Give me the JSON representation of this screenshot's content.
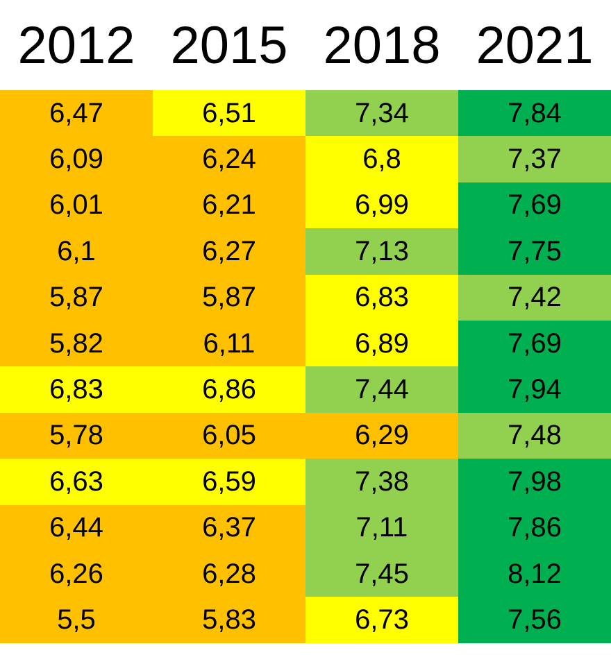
{
  "table": {
    "header": [
      "2012",
      "2015",
      "2018",
      "2021"
    ],
    "rows": [
      [
        "6,47",
        "6,51",
        "7,34",
        "7,84"
      ],
      [
        "6,09",
        "6,24",
        "6,8",
        "7,37"
      ],
      [
        "6,01",
        "6,21",
        "6,99",
        "7,69"
      ],
      [
        "6,1",
        "6,27",
        "7,13",
        "7,75"
      ],
      [
        "5,87",
        "5,87",
        "6,83",
        "7,42"
      ],
      [
        "5,82",
        "6,11",
        "6,89",
        "7,69"
      ],
      [
        "6,83",
        "6,86",
        "7,44",
        "7,94"
      ],
      [
        "5,78",
        "6,05",
        "6,29",
        "7,48"
      ],
      [
        "6,63",
        "6,59",
        "7,38",
        "7,98"
      ],
      [
        "6,44",
        "6,37",
        "7,11",
        "7,86"
      ],
      [
        "6,26",
        "6,28",
        "7,45",
        "8,12"
      ],
      [
        "5,5",
        "5,83",
        "6,73",
        "7,56"
      ]
    ],
    "cell_colors": [
      [
        "#FFC000",
        "#FFFF00",
        "#92D050",
        "#00B050"
      ],
      [
        "#FFC000",
        "#FFC000",
        "#FFFF00",
        "#92D050"
      ],
      [
        "#FFC000",
        "#FFC000",
        "#FFFF00",
        "#00B050"
      ],
      [
        "#FFC000",
        "#FFC000",
        "#92D050",
        "#00B050"
      ],
      [
        "#FFC000",
        "#FFC000",
        "#FFFF00",
        "#92D050"
      ],
      [
        "#FFC000",
        "#FFC000",
        "#FFFF00",
        "#00B050"
      ],
      [
        "#FFFF00",
        "#FFFF00",
        "#92D050",
        "#00B050"
      ],
      [
        "#FFC000",
        "#FFC000",
        "#FFC000",
        "#92D050"
      ],
      [
        "#FFFF00",
        "#FFFF00",
        "#92D050",
        "#00B050"
      ],
      [
        "#FFC000",
        "#FFC000",
        "#92D050",
        "#00B050"
      ],
      [
        "#FFC000",
        "#FFC000",
        "#92D050",
        "#00B050"
      ],
      [
        "#FFC000",
        "#FFC000",
        "#FFFF00",
        "#00B050"
      ]
    ]
  }
}
